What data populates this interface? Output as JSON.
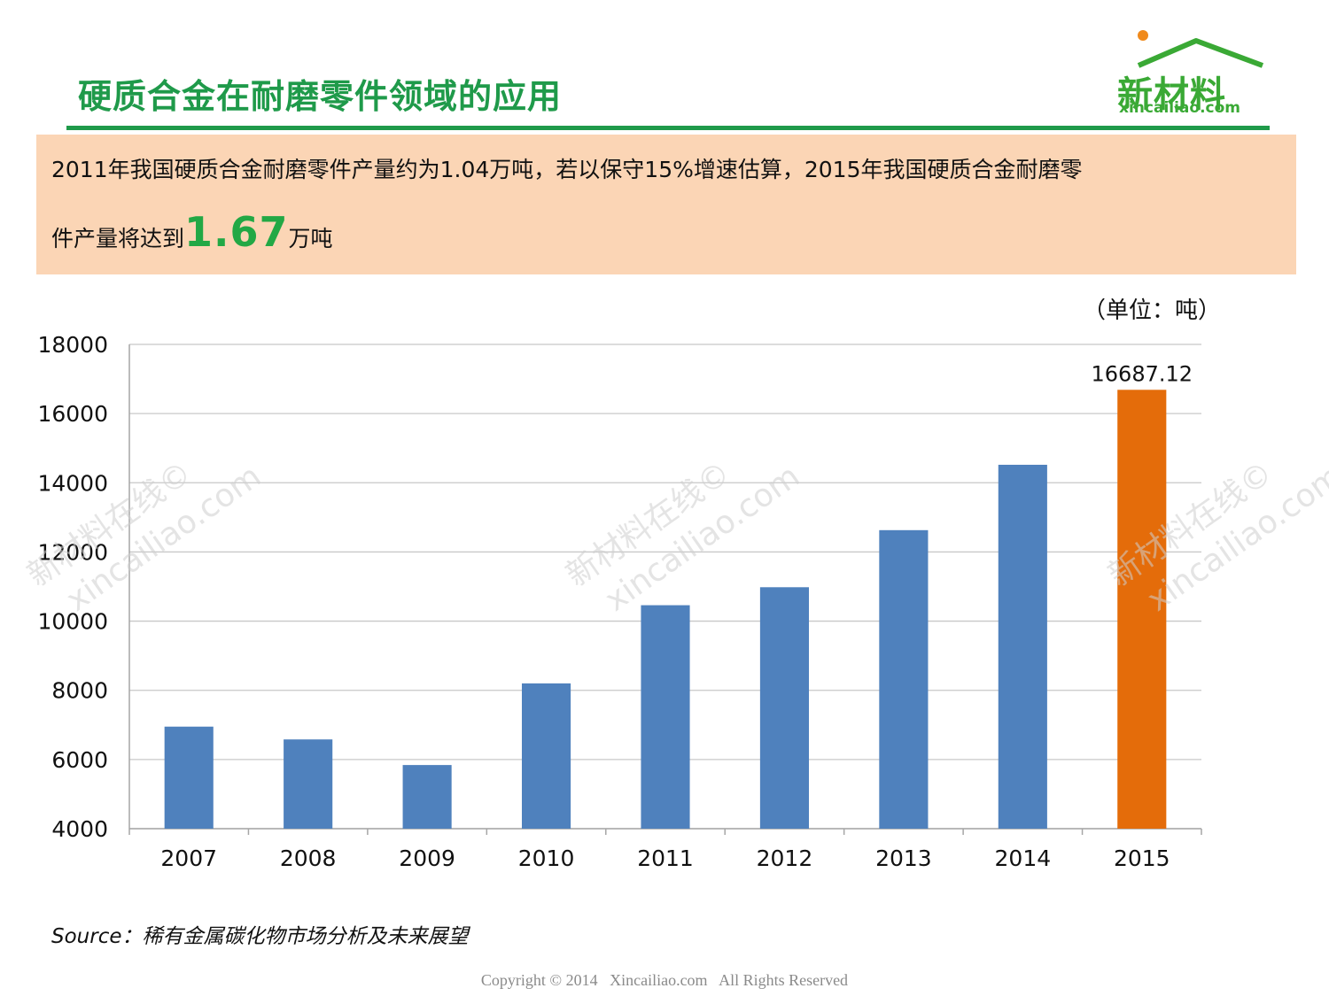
{
  "header": {
    "title": "硬质合金在耐磨零件领域的应用"
  },
  "logo": {
    "name": "新材料",
    "domain": "xincailiao.com",
    "color": "#3aa935",
    "dot_color": "#f08a1c"
  },
  "summary": {
    "line1": "2011年我国硬质合金耐磨零件产量约为1.04万吨，若以保守15%增速估算，2015年我国硬质合金耐磨零",
    "line2_prefix": "件产量将达到",
    "highlight": "1.67",
    "line2_suffix": "万吨",
    "background": "#fbd5b5",
    "highlight_color": "#22a845"
  },
  "unit_label": "（单位：吨）",
  "chart_data": {
    "type": "bar",
    "categories": [
      "2007",
      "2008",
      "2009",
      "2010",
      "2011",
      "2012",
      "2013",
      "2014",
      "2015"
    ],
    "values": [
      6950,
      6580,
      5840,
      8200,
      10460,
      10980,
      12630,
      14520,
      16687.12
    ],
    "data_labels": [
      {
        "category": "2015",
        "text": "16687.12"
      }
    ],
    "ylim": [
      4000,
      18000
    ],
    "y_ticks": [
      4000,
      6000,
      8000,
      10000,
      12000,
      14000,
      16000,
      18000
    ],
    "grid": true,
    "colors": {
      "default": "#4f81bd",
      "highlight": "#e46c0a"
    },
    "highlight_category": "2015"
  },
  "source": "Source：稀有金属碳化物市场分析及未来展望",
  "watermark": {
    "line1": "新材料在线©",
    "line2": "xincailiao.com"
  },
  "footer": {
    "copyright": "Copyright © 2014   Xincailiao.com   All Rights Reserved"
  }
}
